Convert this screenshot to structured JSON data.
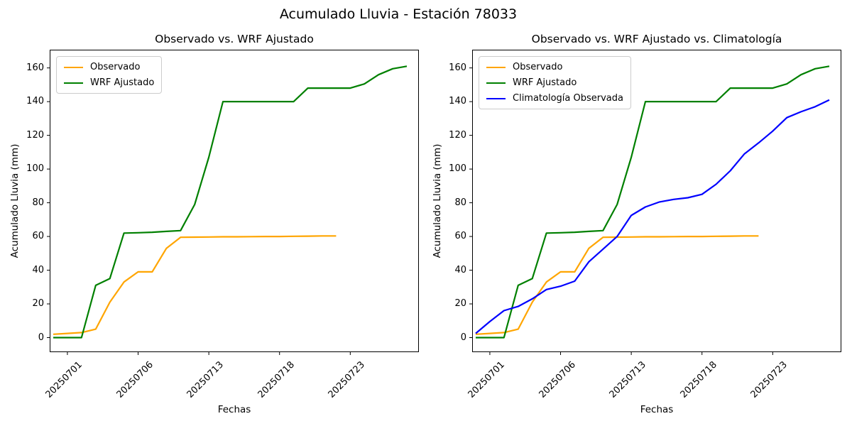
{
  "figure": {
    "title": "Acumulado Lluvia - Estación 78033"
  },
  "colors": {
    "observado": "#ffa500",
    "wrf_ajustado": "#008000",
    "climatologia": "#0000ff",
    "axis": "#000000",
    "legend_border": "#cccccc",
    "background": "#ffffff"
  },
  "chart_data": [
    {
      "type": "line",
      "title": "Observado vs. WRF Ajustado",
      "xlabel": "Fechas",
      "ylabel": "Acumulado Lluvia (mm)",
      "grid": false,
      "legend_position": "upper left",
      "ylim": [
        -9,
        171
      ],
      "y_ticks": [
        0,
        20,
        40,
        60,
        80,
        100,
        120,
        140,
        160
      ],
      "x_tick_labels": [
        "20250701",
        "20250706",
        "20250713",
        "20250718",
        "20250723"
      ],
      "x_tick_slots": [
        1,
        6,
        11,
        16,
        21
      ],
      "x_slot_count": 26,
      "series": [
        {
          "name": "Observado",
          "color": "#ffa500",
          "start_slot": 0,
          "values": [
            2,
            2.5,
            3,
            5,
            21,
            33,
            39,
            39,
            53,
            59.5,
            59.6,
            59.7,
            59.8,
            59.8,
            59.9,
            60,
            60,
            60.1,
            60.2,
            60.3,
            60.3
          ]
        },
        {
          "name": "WRF Ajustado",
          "color": "#008000",
          "start_slot": 0,
          "values": [
            0,
            0,
            0,
            31,
            35,
            62,
            62.2,
            62.5,
            63,
            63.5,
            79,
            107,
            140,
            140,
            140,
            140,
            140,
            140,
            148,
            148,
            148,
            148,
            150.5,
            156,
            159.5,
            161
          ]
        }
      ]
    },
    {
      "type": "line",
      "title": "Observado vs. WRF Ajustado vs. Climatología",
      "xlabel": "Fechas",
      "ylabel": "Acumulado Lluvia (mm)",
      "grid": false,
      "legend_position": "upper left",
      "ylim": [
        -9,
        171
      ],
      "y_ticks": [
        0,
        20,
        40,
        60,
        80,
        100,
        120,
        140,
        160
      ],
      "x_tick_labels": [
        "20250701",
        "20250706",
        "20250713",
        "20250718",
        "20250723"
      ],
      "x_tick_slots": [
        1,
        6,
        11,
        16,
        21
      ],
      "x_slot_count": 26,
      "series": [
        {
          "name": "Observado",
          "color": "#ffa500",
          "start_slot": 0,
          "values": [
            2,
            2.5,
            3,
            5,
            21,
            33,
            39,
            39,
            53,
            59.5,
            59.6,
            59.7,
            59.8,
            59.8,
            59.9,
            60,
            60,
            60.1,
            60.2,
            60.3,
            60.3
          ]
        },
        {
          "name": "WRF Ajustado",
          "color": "#008000",
          "start_slot": 0,
          "values": [
            0,
            0,
            0,
            31,
            35,
            62,
            62.2,
            62.5,
            63,
            63.5,
            79,
            107,
            140,
            140,
            140,
            140,
            140,
            140,
            148,
            148,
            148,
            148,
            150.5,
            156,
            159.5,
            161
          ]
        },
        {
          "name": "Climatología Observada",
          "color": "#0000ff",
          "start_slot": 0,
          "values": [
            2.5,
            9.5,
            16,
            18.5,
            23,
            28.5,
            30.5,
            33.5,
            45,
            52.5,
            60,
            72.5,
            77.5,
            80.5,
            82,
            83,
            85,
            91,
            99,
            109,
            115.5,
            122.5,
            130.5,
            134,
            137,
            141
          ]
        }
      ]
    }
  ]
}
